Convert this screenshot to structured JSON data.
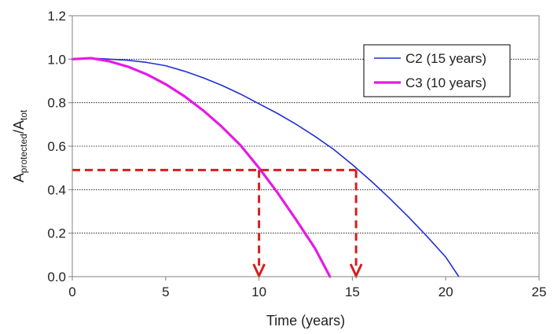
{
  "chart_data": {
    "type": "line",
    "xlabel": "Time (years)",
    "ylabel": {
      "main": "A",
      "sub1": "protected",
      "slash": "/A",
      "sub2": "tot"
    },
    "xlim": [
      0,
      25
    ],
    "ylim": [
      0,
      1.2
    ],
    "xticks": [
      "0",
      "5",
      "10",
      "15",
      "20",
      "25"
    ],
    "yticks": [
      "0.0",
      "0.2",
      "0.4",
      "0.6",
      "0.8",
      "1.0",
      "1.2"
    ],
    "grid": "horizontal",
    "legend_position": "top-right",
    "series": [
      {
        "name": "C2 (15 years)",
        "color": "#1f2fd6",
        "x": [
          0,
          1,
          2,
          3,
          4,
          5,
          6,
          7,
          8,
          9,
          10,
          11,
          12,
          13,
          14,
          15,
          16,
          17,
          18,
          19,
          20,
          20.7
        ],
        "y": [
          1.0,
          1.005,
          1.0,
          0.995,
          0.985,
          0.97,
          0.945,
          0.915,
          0.88,
          0.84,
          0.795,
          0.75,
          0.7,
          0.645,
          0.585,
          0.515,
          0.44,
          0.36,
          0.275,
          0.185,
          0.09,
          0.0
        ]
      },
      {
        "name": "C3 (10 years)",
        "color": "#e619e6",
        "x": [
          0,
          1,
          2,
          3,
          4,
          5,
          6,
          7,
          8,
          9,
          10,
          11,
          12,
          13,
          13.8
        ],
        "y": [
          1.0,
          1.005,
          0.99,
          0.965,
          0.93,
          0.885,
          0.83,
          0.765,
          0.69,
          0.605,
          0.5,
          0.385,
          0.26,
          0.13,
          0.0
        ]
      }
    ],
    "annotations": {
      "threshold_y": 0.49,
      "color": "#d81e1e",
      "arrows_x": [
        10,
        15.2
      ]
    }
  }
}
